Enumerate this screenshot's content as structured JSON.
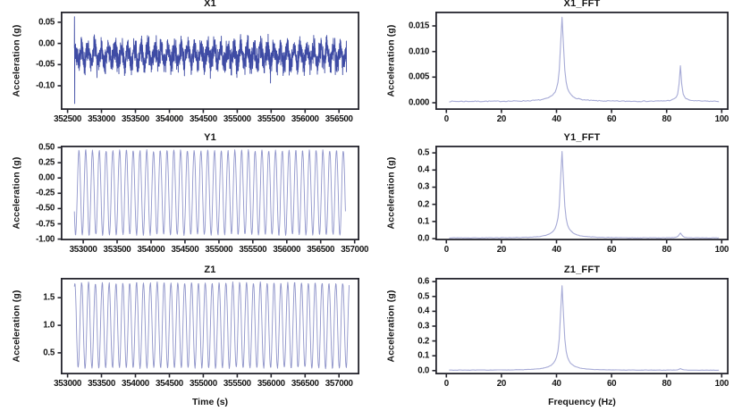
{
  "styles": {
    "background": "#ffffff",
    "text_color": "#161616",
    "spine_color": "#26262e",
    "dense_line_color": "#3e4ba4",
    "sine_line_color": "#9095cb",
    "fft_line_color": "#a6aad6"
  },
  "chart_data": [
    {
      "id": "x1",
      "type": "line",
      "title": "X1",
      "xlabel": "",
      "ylabel": "Acceleration (g)",
      "xlim": [
        352400,
        356800
      ],
      "ylim": [
        -0.157,
        0.075
      ],
      "xticks": [
        352500,
        353000,
        353500,
        354000,
        354500,
        355000,
        355500,
        356000,
        356500
      ],
      "xtick_labels": [
        "352500",
        "353000",
        "353500",
        "354000",
        "354500",
        "355000",
        "355500",
        "356000",
        "356500"
      ],
      "yticks": [
        0.05,
        0.0,
        -0.05,
        -0.1
      ],
      "ytick_labels": [
        "0.05",
        "0.00",
        "-0.05",
        "-0.10"
      ],
      "line_color": "#3e4ba4",
      "line_width": 0.9,
      "signal": {
        "kind": "noisy",
        "x_start": 352600,
        "x_end": 356610,
        "n": 2300,
        "seed": 42,
        "mean": -0.028,
        "sine_amp": 0.018,
        "cycles": 41,
        "noise_amp": 0.034,
        "start_max": 0.063,
        "start_min": -0.142
      }
    },
    {
      "id": "x1_fft",
      "type": "line",
      "title": "X1_FFT",
      "xlabel": "",
      "ylabel": "Acceleration (g)",
      "xlim": [
        -4,
        102.5
      ],
      "ylim": [
        -0.0014,
        0.0178
      ],
      "xticks": [
        0,
        20,
        40,
        60,
        80,
        100
      ],
      "xtick_labels": [
        "0",
        "20",
        "40",
        "60",
        "80",
        "100"
      ],
      "yticks": [
        0.015,
        0.01,
        0.005,
        0.0
      ],
      "ytick_labels": [
        "0.015",
        "0.010",
        "0.005",
        "0.000"
      ],
      "line_color": "#a6aad6",
      "line_width": 1.1,
      "signal": {
        "kind": "fft",
        "x_start": 1,
        "x_end": 99,
        "step": 0.5,
        "seed": 7,
        "base": 0.00025,
        "peaks": [
          {
            "c": 42,
            "h": 0.0152,
            "w": 0.7
          },
          {
            "c": 42,
            "h": 0.0012,
            "w": 3.5
          },
          {
            "c": 85,
            "h": 0.0066,
            "w": 0.45
          },
          {
            "c": 85,
            "h": 0.0004,
            "w": 2.5
          }
        ]
      }
    },
    {
      "id": "y1",
      "type": "line",
      "title": "Y1",
      "xlabel": "",
      "ylabel": "Acceleration (g)",
      "xlim": [
        352670,
        357070
      ],
      "ylim": [
        -1.02,
        0.53
      ],
      "xticks": [
        353000,
        353500,
        354000,
        354500,
        355000,
        355500,
        356000,
        356500,
        357000
      ],
      "xtick_labels": [
        "353000",
        "353500",
        "354000",
        "354500",
        "355000",
        "355500",
        "356000",
        "356500",
        "357000"
      ],
      "yticks": [
        0.5,
        0.25,
        0.0,
        -0.25,
        -0.5,
        -0.75,
        -1.0
      ],
      "ytick_labels": [
        "0.50",
        "0.25",
        "0.00",
        "-0.25",
        "-0.50",
        "-0.75",
        "-1.00"
      ],
      "line_color": "#9095cb",
      "line_width": 0.9,
      "signal": {
        "kind": "sine",
        "x_start": 352870,
        "x_end": 356865,
        "n": 780,
        "seed": 11,
        "offset": -0.24,
        "amp": 0.69,
        "cycles": 40,
        "phase": 3.6,
        "amp_jitter": 0.05
      }
    },
    {
      "id": "y1_fft",
      "type": "line",
      "title": "Y1_FFT",
      "xlabel": "",
      "ylabel": "Acceleration (g)",
      "xlim": [
        -4,
        102.5
      ],
      "ylim": [
        -0.01,
        0.542
      ],
      "xticks": [
        0,
        20,
        40,
        60,
        80,
        100
      ],
      "xtick_labels": [
        "0",
        "20",
        "40",
        "60",
        "80",
        "100"
      ],
      "yticks": [
        0.5,
        0.4,
        0.3,
        0.2,
        0.1,
        0.0
      ],
      "ytick_labels": [
        "0.5",
        "0.4",
        "0.3",
        "0.2",
        "0.1",
        "0.0"
      ],
      "line_color": "#a6aad6",
      "line_width": 1.1,
      "signal": {
        "kind": "fft",
        "x_start": 1,
        "x_end": 99,
        "step": 0.5,
        "seed": 19,
        "base": 0.004,
        "peaks": [
          {
            "c": 42,
            "h": 0.47,
            "w": 0.7
          },
          {
            "c": 42,
            "h": 0.035,
            "w": 3.5
          },
          {
            "c": 85,
            "h": 0.028,
            "w": 0.6
          }
        ]
      }
    },
    {
      "id": "z1",
      "type": "line",
      "title": "Z1",
      "xlabel": "Time (s)",
      "ylabel": "Acceleration (g)",
      "xlim": [
        352900,
        357300
      ],
      "ylim": [
        0.11,
        1.86
      ],
      "xticks": [
        353000,
        353500,
        354000,
        354500,
        355000,
        355500,
        356000,
        356500,
        357000
      ],
      "xtick_labels": [
        "353000",
        "353500",
        "354000",
        "354500",
        "355000",
        "355500",
        "356000",
        "356500",
        "357000"
      ],
      "yticks": [
        1.5,
        1.0,
        0.5
      ],
      "ytick_labels": [
        "1.5",
        "1.0",
        "0.5"
      ],
      "line_color": "#8e93c9",
      "line_width": 0.9,
      "signal": {
        "kind": "sine",
        "x_start": 353100,
        "x_end": 357150,
        "n": 780,
        "seed": 23,
        "offset": 1.0,
        "amp": 0.77,
        "cycles": 40,
        "phase": 1.2,
        "amp_jitter": 0.05
      }
    },
    {
      "id": "z1_fft",
      "type": "line",
      "title": "Z1_FFT",
      "xlabel": "Frequency (Hz)",
      "ylabel": "Acceleration (g)",
      "xlim": [
        -4,
        102.5
      ],
      "ylim": [
        -0.025,
        0.625
      ],
      "xticks": [
        0,
        20,
        40,
        60,
        80,
        100
      ],
      "xtick_labels": [
        "0",
        "20",
        "40",
        "60",
        "80",
        "100"
      ],
      "yticks": [
        0.6,
        0.5,
        0.4,
        0.3,
        0.2,
        0.1,
        0.0
      ],
      "ytick_labels": [
        "0.6",
        "0.5",
        "0.4",
        "0.3",
        "0.2",
        "0.1",
        "0.0"
      ],
      "line_color": "#a6aad6",
      "line_width": 1.1,
      "signal": {
        "kind": "fft",
        "x_start": 1,
        "x_end": 99,
        "step": 0.5,
        "seed": 31,
        "base": 0.003,
        "peaks": [
          {
            "c": 42,
            "h": 0.53,
            "w": 0.7
          },
          {
            "c": 42,
            "h": 0.04,
            "w": 3.5
          },
          {
            "c": 85,
            "h": 0.01,
            "w": 0.7
          }
        ]
      }
    }
  ]
}
